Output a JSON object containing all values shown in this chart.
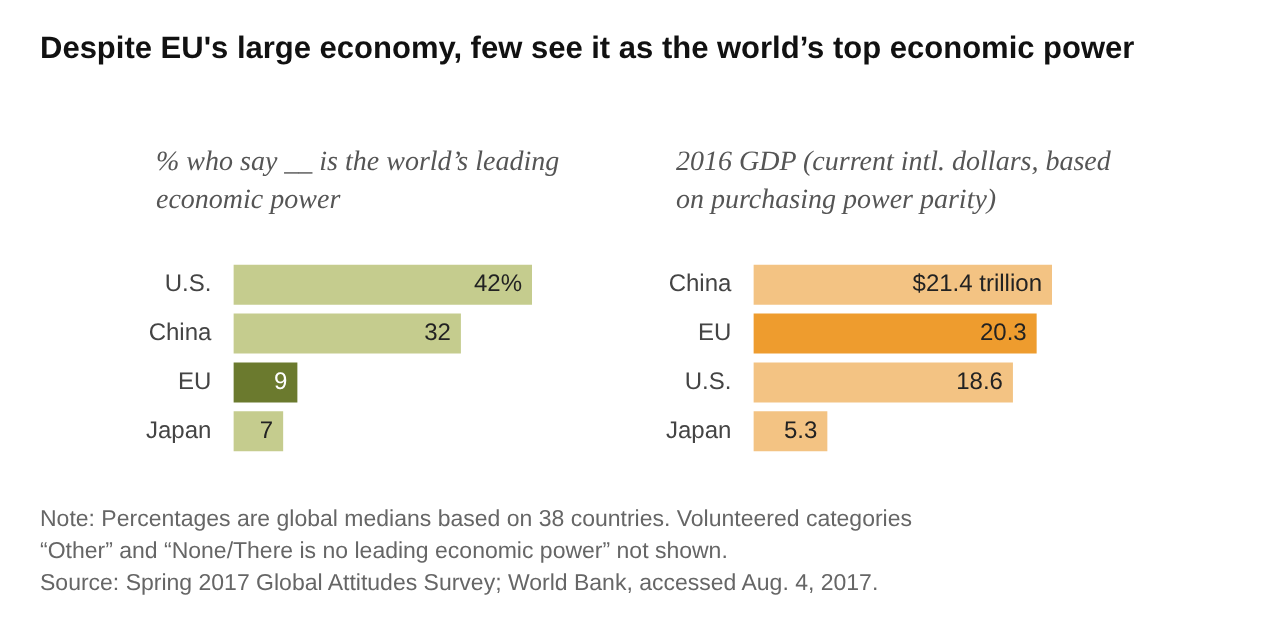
{
  "chart_data": [
    {
      "type": "bar",
      "orientation": "horizontal",
      "title": "Despite EU's large economy, few see it as the world’s top economic power",
      "subtitle": "% who say __ is the world’s leading economic power",
      "categories": [
        "U.S.",
        "China",
        "EU",
        "Japan"
      ],
      "values": [
        42,
        32,
        9,
        7
      ],
      "colors": [
        "#c5cc8e",
        "#c5cc8e",
        "#6b7a2e",
        "#c5cc8e"
      ],
      "value_labels": [
        "42%",
        "32",
        "9",
        "7"
      ],
      "annotations": [
        "Note: Percentages are global medians based on 38 countries. Volunteered categories “Other” and “None/There is no leading economic power” not shown.",
        "Source: Spring 2017 Global Attitudes Survey; World Bank, accessed Aug. 4, 2017."
      ]
    },
    {
      "type": "bar",
      "orientation": "horizontal",
      "subtitle": "2016 GDP (current intl. dollars, based on purchasing power parity)",
      "categories": [
        "China",
        "EU",
        "U.S.",
        "Japan"
      ],
      "values": [
        21.4,
        20.3,
        18.6,
        5.3
      ],
      "colors": [
        "#f3c383",
        "#ee9c2e",
        "#f3c383",
        "#f3c383"
      ],
      "value_labels": [
        "$21.4 trillion",
        "20.3",
        "18.6",
        "5.3"
      ]
    }
  ]
}
